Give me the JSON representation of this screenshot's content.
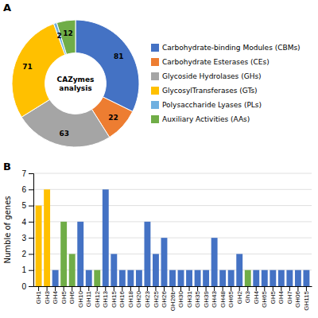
{
  "chart_data": [
    {
      "type": "pie",
      "title": "A",
      "annotation": "CAZymes\nanalysis",
      "categories": [
        "Carbohydrate-binding Modules (CBMs)",
        "Carbohydrate Esterases (CEs)",
        "Glycoside Hydrolases (GHs)",
        "GlycosylTransferases (GTs)",
        "Polysaccharide Lyases (PLs)",
        "Auxiliary Activities (AAs)"
      ],
      "values": [
        81,
        22,
        63,
        71,
        2,
        12
      ],
      "colors": [
        "#4472C4",
        "#ED7D31",
        "#A5A5A5",
        "#FFC000",
        "#70B0E0",
        "#70AD47"
      ],
      "data_labels": true,
      "legend": "right"
    },
    {
      "type": "bar",
      "title": "B",
      "y_label": "Numble of genes",
      "categories": [
        "GH1",
        "GH3",
        "GH4",
        "GH5",
        "GH6",
        "GH10",
        "GH11",
        "GH12",
        "GH13",
        "GH15",
        "GH16",
        "GH18",
        "GH20",
        "GH23",
        "GH25",
        "GH26",
        "GH26b",
        "GH30",
        "GH31",
        "GH35",
        "GH39",
        "GH43",
        "GH48",
        "GH65",
        "GH2",
        "Gh3",
        "GH4",
        "GH65",
        "GH5",
        "GH4",
        "GH7",
        "GH06",
        "GH115"
      ],
      "values": [
        5,
        6,
        1,
        4,
        2,
        4,
        1,
        1,
        6,
        2,
        1,
        1,
        1,
        4,
        2,
        3,
        1,
        1,
        1,
        1,
        1,
        3,
        1,
        1,
        2,
        1,
        1,
        1,
        1,
        1,
        1,
        1,
        1
      ],
      "colors": [
        "#FFC000",
        "#FFC000",
        "#4472C4",
        "#70AD47",
        "#70AD47",
        "#4472C4",
        "#4472C4",
        "#70AD47",
        "#4472C4",
        "#4472C4",
        "#4472C4",
        "#4472C4",
        "#4472C4",
        "#4472C4",
        "#4472C4",
        "#4472C4",
        "#4472C4",
        "#4472C4",
        "#4472C4",
        "#4472C4",
        "#4472C4",
        "#4472C4",
        "#4472C4",
        "#4472C4",
        "#4472C4",
        "#70AD47",
        "#4472C4",
        "#4472C4",
        "#4472C4",
        "#4472C4",
        "#4472C4",
        "#4472C4",
        "#4472C4"
      ],
      "ylim": [
        0,
        7
      ],
      "yticks": [
        0,
        1,
        2,
        3,
        4,
        5,
        6,
        7
      ],
      "grid": true
    }
  ]
}
